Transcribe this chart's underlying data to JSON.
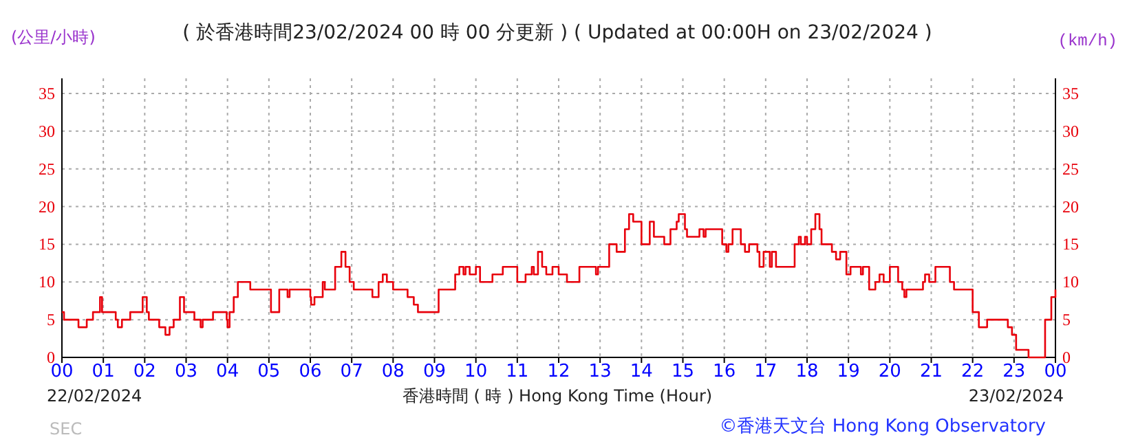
{
  "chart_data": {
    "type": "step",
    "title": "( 於香港時間23/02/2024 00 時 00 分更新 ) ( Updated at 00:00H on 23/02/2024 )",
    "ylabel": "(公里/小時)",
    "y2label": "(km/h)",
    "xlabel": "香港時間 ( 時 ) Hong Kong Time (Hour)",
    "annotations": [
      "22/02/2024",
      "23/02/2024",
      "SEC",
      "©香港天文台 Hong Kong Observatory"
    ],
    "xlim": [
      0,
      24
    ],
    "xticks": [
      {
        "value": 0,
        "label": "00"
      },
      {
        "value": 1,
        "label": "01"
      },
      {
        "value": 2,
        "label": "02"
      },
      {
        "value": 3,
        "label": "03"
      },
      {
        "value": 4,
        "label": "04"
      },
      {
        "value": 5,
        "label": "05"
      },
      {
        "value": 6,
        "label": "06"
      },
      {
        "value": 7,
        "label": "07"
      },
      {
        "value": 8,
        "label": "08"
      },
      {
        "value": 9,
        "label": "09"
      },
      {
        "value": 10,
        "label": "10"
      },
      {
        "value": 11,
        "label": "11"
      },
      {
        "value": 12,
        "label": "12"
      },
      {
        "value": 13,
        "label": "13"
      },
      {
        "value": 14,
        "label": "14"
      },
      {
        "value": 15,
        "label": "15"
      },
      {
        "value": 16,
        "label": "16"
      },
      {
        "value": 17,
        "label": "17"
      },
      {
        "value": 18,
        "label": "18"
      },
      {
        "value": 19,
        "label": "19"
      },
      {
        "value": 20,
        "label": "20"
      },
      {
        "value": 21,
        "label": "21"
      },
      {
        "value": 22,
        "label": "22"
      },
      {
        "value": 23,
        "label": "23"
      },
      {
        "value": 24,
        "label": "00"
      }
    ],
    "ylim": [
      0,
      37
    ],
    "yticks": [
      0,
      5,
      10,
      15,
      20,
      25,
      30,
      35
    ],
    "y2lim": [
      0,
      37
    ],
    "y2ticks": [
      0,
      5,
      10,
      15,
      20,
      25,
      30,
      35
    ],
    "grid": true,
    "marker": "none",
    "line_style": "solid",
    "series": [
      {
        "color": "#e8000b",
        "x": [
          0,
          0.05,
          0.4,
          0.6,
          0.75,
          0.8,
          0.92,
          0.97,
          1.05,
          1.3,
          1.35,
          1.45,
          1.65,
          1.75,
          1.95,
          2.05,
          2.1,
          2.35,
          2.5,
          2.6,
          2.7,
          2.85,
          2.95,
          3.1,
          3.2,
          3.35,
          3.4,
          3.65,
          3.98,
          4.0,
          4.05,
          4.15,
          4.25,
          4.55,
          5.05,
          5.25,
          5.45,
          5.5,
          6.0,
          6.02,
          6.1,
          6.3,
          6.35,
          6.6,
          6.75,
          6.85,
          6.95,
          7.05,
          7.5,
          7.65,
          7.75,
          7.85,
          8.0,
          8.35,
          8.5,
          8.6,
          9.1,
          9.5,
          9.6,
          9.7,
          9.75,
          9.85,
          10.0,
          10.1,
          10.4,
          10.65,
          11.0,
          11.2,
          11.35,
          11.4,
          11.5,
          11.6,
          11.7,
          11.85,
          12.0,
          12.2,
          12.5,
          12.9,
          12.95,
          13.22,
          13.4,
          13.6,
          13.7,
          13.8,
          14.0,
          14.2,
          14.3,
          14.55,
          14.7,
          14.85,
          14.9,
          15.05,
          15.1,
          15.4,
          15.5,
          15.55,
          15.95,
          16.05,
          16.1,
          16.2,
          16.4,
          16.5,
          16.6,
          16.8,
          16.85,
          16.95,
          17.1,
          17.15,
          17.25,
          17.7,
          17.8,
          17.85,
          17.95,
          18.0,
          18.1,
          18.2,
          18.3,
          18.35,
          18.6,
          18.7,
          18.8,
          18.95,
          19.05,
          19.3,
          19.35,
          19.5,
          19.65,
          19.75,
          19.85,
          20.0,
          20.2,
          20.3,
          20.35,
          20.4,
          20.8,
          20.85,
          20.95,
          21.1,
          21.45,
          21.55,
          22.0,
          22.15,
          22.35,
          22.85,
          22.95,
          23.05,
          23.35,
          23.6,
          23.75,
          23.9,
          24.0
        ],
        "values": [
          6,
          5,
          4,
          5,
          6,
          6,
          8,
          6,
          6,
          5,
          4,
          5,
          6,
          6,
          8,
          6,
          5,
          4,
          3,
          4,
          5,
          8,
          6,
          6,
          5,
          4,
          5,
          6,
          5,
          4,
          6,
          8,
          10,
          9,
          6,
          9,
          8,
          9,
          8,
          7,
          8,
          10,
          9,
          12,
          14,
          12,
          10,
          9,
          8,
          10,
          11,
          10,
          9,
          8,
          7,
          6,
          9,
          11,
          12,
          11,
          12,
          11,
          12,
          10,
          11,
          12,
          10,
          11,
          12,
          11,
          14,
          12,
          11,
          12,
          11,
          10,
          12,
          11,
          12,
          15,
          14,
          17,
          19,
          18,
          15,
          18,
          16,
          15,
          17,
          18,
          19,
          17,
          16,
          17,
          16,
          17,
          15,
          14,
          15,
          17,
          15,
          14,
          15,
          14,
          12,
          14,
          12,
          14,
          12,
          15,
          16,
          15,
          16,
          15,
          17,
          19,
          17,
          15,
          14,
          13,
          14,
          11,
          12,
          11,
          12,
          9,
          10,
          11,
          10,
          12,
          10,
          9,
          8,
          9,
          10,
          11,
          10,
          12,
          10,
          9,
          6,
          4,
          5,
          4,
          3,
          1,
          0,
          0,
          5,
          8,
          9
        ]
      }
    ]
  }
}
